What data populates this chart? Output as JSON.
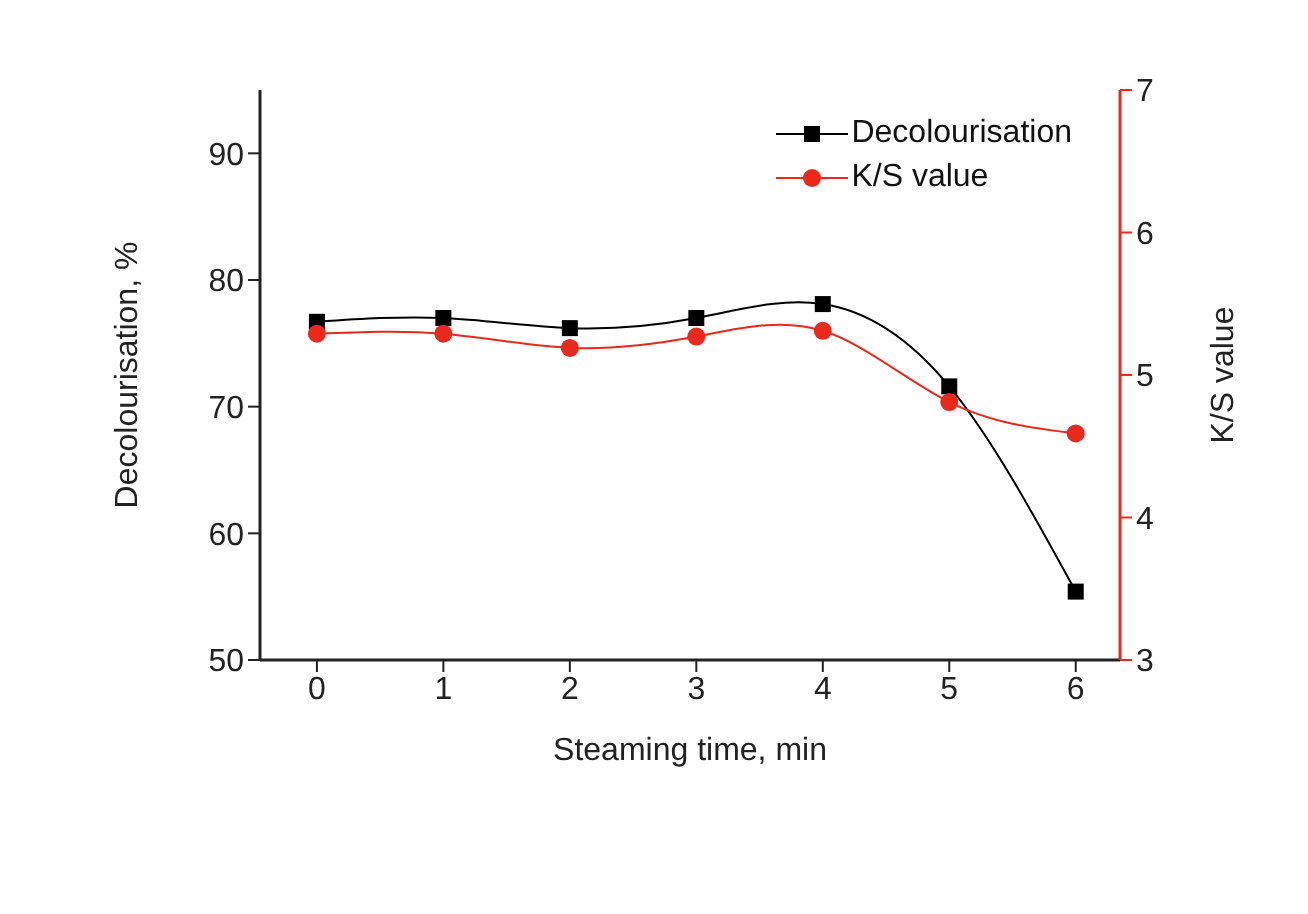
{
  "chart_data": {
    "type": "line",
    "xlabel": "Steaming time, min",
    "ylabel": "Decolourisation, %",
    "y2label": "K/S value",
    "x": [
      0,
      1,
      2,
      3,
      4,
      5,
      6
    ],
    "xlim": [
      -0.45,
      6.35
    ],
    "xticks": [
      0,
      1,
      2,
      3,
      4,
      5,
      6
    ],
    "ylim": [
      50,
      95
    ],
    "yticks": [
      50,
      60,
      70,
      80,
      90
    ],
    "y2lim": [
      3,
      7
    ],
    "y2ticks": [
      3,
      4,
      5,
      6,
      7
    ],
    "legend": "top right",
    "grid": false,
    "series": [
      {
        "name": "Decolourisation",
        "color": "#000000",
        "marker": "square",
        "values": [
          76.7,
          77.0,
          76.2,
          77.0,
          78.1,
          71.6,
          55.4
        ]
      },
      {
        "name": "K/S value",
        "color": "#e8291c",
        "marker": "circle",
        "axis": "y2",
        "values": [
          5.29,
          5.29,
          5.19,
          5.27,
          5.31,
          4.81,
          4.59
        ]
      }
    ]
  }
}
